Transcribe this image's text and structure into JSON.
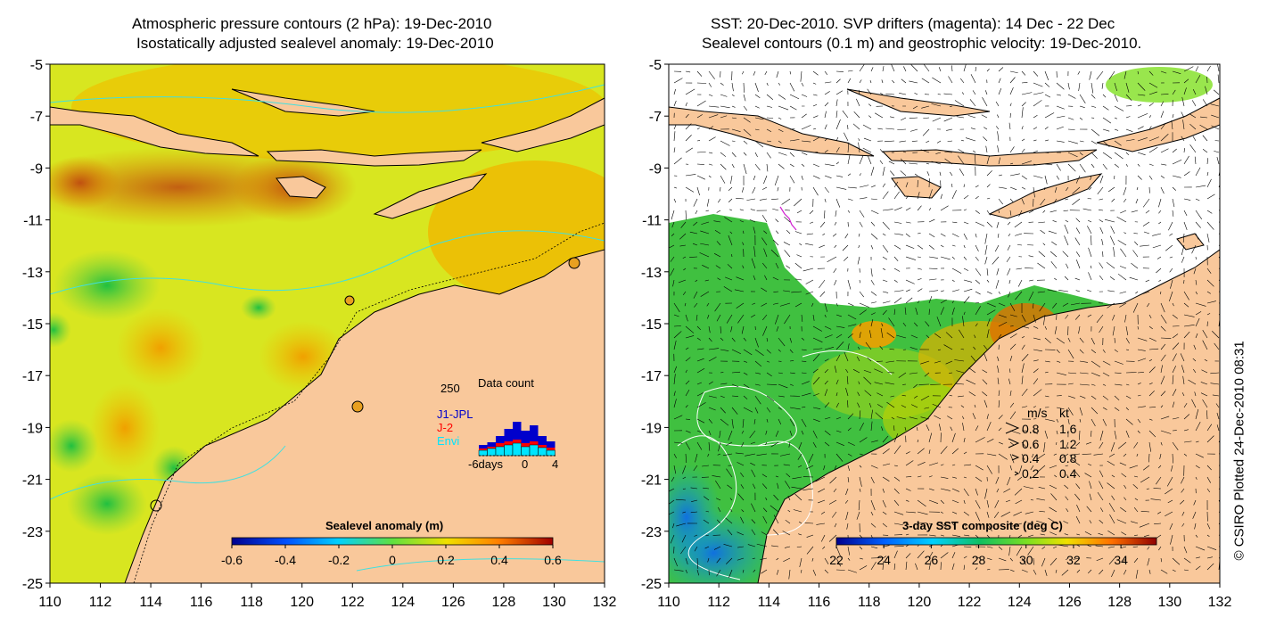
{
  "left_panel": {
    "title_line1": "Atmospheric pressure contours (2 hPa): 19-Dec-2010",
    "title_line2": "Isostatically adjusted sealevel anomaly: 19-Dec-2010",
    "colorbar": {
      "label": "Sealevel anomaly (m)",
      "ticks": [
        "-0.6",
        "-0.4",
        "-0.2",
        "0",
        "0.2",
        "0.4",
        "0.6"
      ],
      "vmin": -0.6,
      "vmax": 0.6
    },
    "data_count": {
      "title": "Data count",
      "ymax_label": "250",
      "series": [
        "J1-JPL",
        "J-2",
        "Envi"
      ],
      "series_colors": [
        "#0000cc",
        "#ff0000",
        "#00e5ff"
      ],
      "x_ticks": [
        "-6days",
        "0",
        "4"
      ]
    }
  },
  "right_panel": {
    "title_line1": "SST: 20-Dec-2010. SVP drifters (magenta): 14 Dec - 22 Dec",
    "title_line2": "Sealevel contours (0.1 m) and geostrophic velocity: 19-Dec-2010.",
    "colorbar": {
      "label": "3-day SST composite (deg C)",
      "ticks": [
        "22",
        "24",
        "26",
        "28",
        "30",
        "32",
        "34"
      ],
      "vmin": 22,
      "vmax": 35.5
    },
    "velocity_legend": {
      "header_ms": "m/s",
      "header_kt": "kt",
      "rows": [
        {
          "ms": "0.8",
          "kt": "1.6"
        },
        {
          "ms": "0.6",
          "kt": "1.2"
        },
        {
          "ms": "0.4",
          "kt": "0.8"
        },
        {
          "ms": "0.2",
          "kt": "0.4"
        }
      ]
    }
  },
  "axes": {
    "lon_ticks": [
      "110",
      "112",
      "114",
      "116",
      "118",
      "120",
      "122",
      "124",
      "126",
      "128",
      "130",
      "132"
    ],
    "lat_ticks": [
      "-5",
      "-7",
      "-9",
      "-11",
      "-13",
      "-15",
      "-17",
      "-19",
      "-21",
      "-23",
      "-25"
    ],
    "lon_range": [
      110,
      132
    ],
    "lat_range": [
      -25,
      -5
    ]
  },
  "credit": "© CSIRO Plotted 24-Dec-2010 08:31",
  "colors": {
    "land": "#f9c89b",
    "coast": "#000000",
    "contour_cyan": "#40e0e0",
    "drifter": "#d020d0"
  }
}
